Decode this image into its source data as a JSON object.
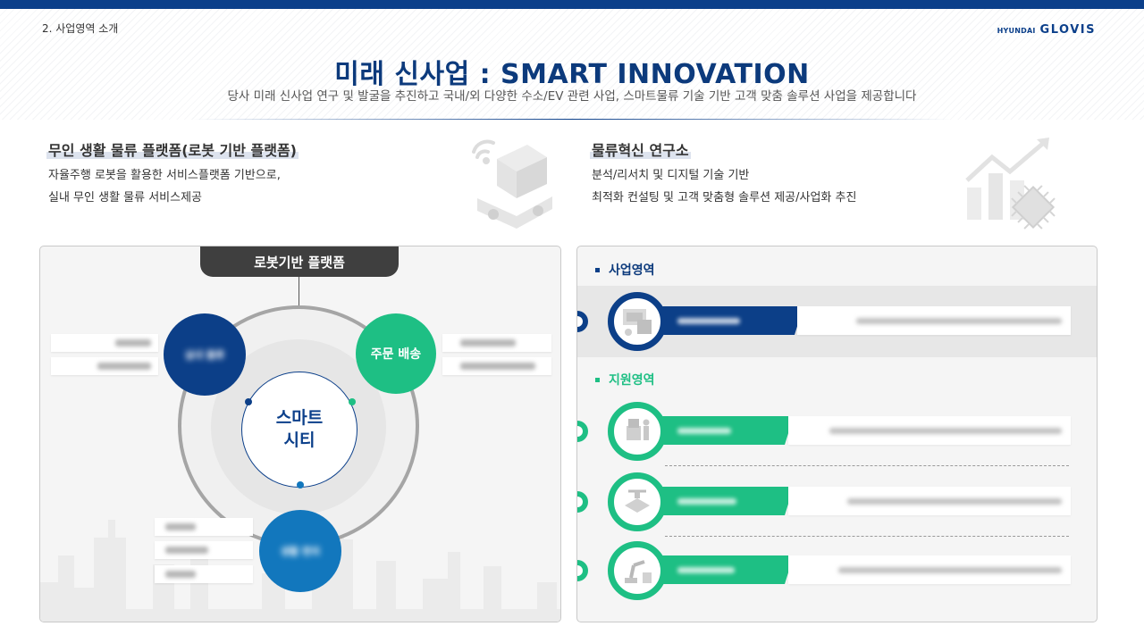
{
  "header": {
    "section": "2. 사업영역 소개",
    "logo_small": "HYUNDAI",
    "logo_big": "GLOVIS",
    "title": "미래 신사업 : SMART INNOVATION",
    "subtitle": "당사 미래 신사업 연구 및 발굴을 추진하고 국내/외 다양한 수소/EV 관련 사업, 스마트물류 기술 기반 고객 맞춤 솔루션 사업을 제공합니다"
  },
  "left_intro": {
    "title": "무인 생활 물류 플랫폼(로봇 기반 플랫폼)",
    "line1": "자율주행 로봇을 활용한 서비스플랫폼 기반으로,",
    "line2": "실내 무인 생활 물류 서비스제공",
    "icon": "robot-icon"
  },
  "right_intro": {
    "title": "물류혁신 연구소",
    "line1": "분석/리서치 및 디지털 기술 기반",
    "line2": "최적화 컨설팅 및 고객 맞춤형 솔루션 제공/사업화 추진",
    "icon": "chip-growth-icon"
  },
  "platform": {
    "tab_label": "로봇기반 플랫폼",
    "center_line1": "스마트",
    "center_line2": "시티",
    "node_order": "주문 배송",
    "node_left_blur": "실내 물류",
    "node_bottom_blur": "생활 편의"
  },
  "right_panel": {
    "business_label": "사업영역",
    "support_label": "지원영역",
    "business_icon": "delivery-device-icon",
    "support_icons": [
      "warehouse-worker-icon",
      "drone-chip-icon",
      "robot-arm-icon"
    ]
  },
  "colors": {
    "navy": "#0c3f88",
    "green": "#1ebf84",
    "blue": "#1277bd",
    "topbar": "#0b3f8a"
  }
}
